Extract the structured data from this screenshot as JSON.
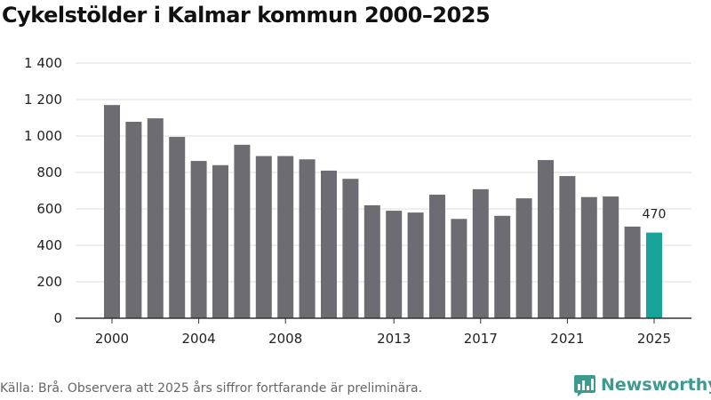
{
  "title": "Cykelstölder i Kalmar kommun 2000–2025",
  "source": "Källa: Brå. Observera att 2025 års siffror fortfarande är preliminära.",
  "brand": {
    "name": "Newsworthy",
    "color": "#3d9a8f",
    "logo_icon": "newsworthy-bar-chart-icon"
  },
  "colors": {
    "bar": "#6d6c72",
    "highlight": "#17a398",
    "grid": "#dddddd",
    "axis": "#333333"
  },
  "chart_data": {
    "type": "bar",
    "categories": [
      "2000",
      "2001",
      "2002",
      "2003",
      "2004",
      "2005",
      "2006",
      "2007",
      "2008",
      "2009",
      "2010",
      "2011",
      "2012",
      "2013",
      "2014",
      "2015",
      "2016",
      "2017",
      "2018",
      "2019",
      "2020",
      "2021",
      "2022",
      "2023",
      "2024",
      "2025"
    ],
    "values": [
      1170,
      1078,
      1097,
      995,
      863,
      840,
      952,
      890,
      890,
      872,
      810,
      765,
      620,
      590,
      580,
      678,
      545,
      708,
      562,
      658,
      868,
      780,
      665,
      668,
      503,
      470
    ],
    "highlight_category": "2025",
    "data_labels": [
      {
        "category": "2025",
        "text": "470"
      }
    ],
    "x_tick_labels": [
      "2000",
      "2004",
      "2008",
      "2013",
      "2017",
      "2021",
      "2025"
    ],
    "y_ticks": [
      0,
      200,
      400,
      600,
      800,
      1000,
      1200,
      1400
    ],
    "y_tick_labels": [
      "0",
      "200",
      "400",
      "600",
      "800",
      "1 000",
      "1 200",
      "1 400"
    ],
    "ylim": [
      0,
      1400
    ],
    "xlabel": "",
    "ylabel": "",
    "grid": true,
    "legend": "none"
  }
}
